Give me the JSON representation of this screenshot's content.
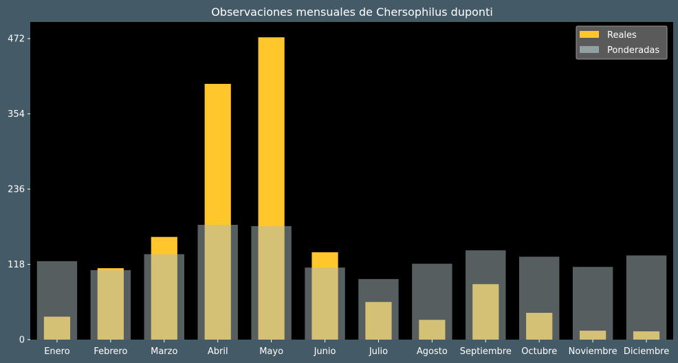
{
  "chart_data": {
    "type": "bar",
    "title": "Observaciones mensuales de Chersophilus duponti",
    "xlabel": "",
    "ylabel": "",
    "categories": [
      "Enero",
      "Febrero",
      "Marzo",
      "Abril",
      "Mayo",
      "Junio",
      "Julio",
      "Agosto",
      "Septiembre",
      "Octubre",
      "Noviembre",
      "Diciembre"
    ],
    "series": [
      {
        "name": "Reales",
        "color": "#ffc72c",
        "values": [
          36,
          112,
          161,
          401,
          474,
          137,
          59,
          31,
          87,
          42,
          14,
          13
        ]
      },
      {
        "name": "Ponderadas",
        "color": "#acbcbf",
        "opacity": 0.5,
        "values": [
          123,
          109,
          134,
          180,
          178,
          113,
          95,
          119,
          140,
          130,
          114,
          132
        ]
      }
    ],
    "ylim": [
      0,
      498
    ],
    "yticks": [
      0,
      118,
      236,
      354,
      472
    ],
    "grid": false,
    "legend_position": "top-right",
    "background": "#000000",
    "figure_background": "#455a67",
    "text_color": "#ffffff"
  }
}
